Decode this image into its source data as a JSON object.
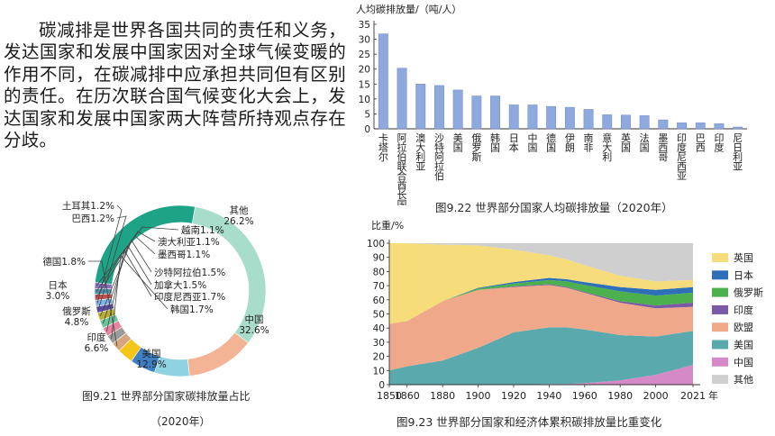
{
  "intro": {
    "paragraph": "碳减排是世界各国共同的责任和义务，发达国家和发展中国家因对全球气候变暖的作用不同，在碳减排中应承担共同但有区别的责任。在历次联合国气候变化大会上，发达国家和发展中国家两大阵营所持观点存在分歧。"
  },
  "captions": {
    "fig921_line1": "图9.21  世界部分国家碳排放量占比",
    "fig921_line2": "（2020年）",
    "fig922": "图9.22  世界部分国家人均碳排放量（2020年）",
    "fig923": "图9.23  世界部分国家和经济体累积碳排放量比重变化"
  },
  "chart_data": [
    {
      "id": "fig9_21",
      "type": "pie",
      "style": "donut",
      "slices": [
        {
          "label": "中国",
          "value": 32.6,
          "text": "中国\n32.6%",
          "color": "#a8dccb"
        },
        {
          "label": "美国",
          "value": 12.9,
          "text": "美国\n12.9%",
          "color": "#f3b496"
        },
        {
          "label": "印度",
          "value": 6.6,
          "text": "印度\n6.6%",
          "color": "#8fd3e3"
        },
        {
          "label": "俄罗斯",
          "value": 4.8,
          "text": "俄罗斯\n4.8%",
          "color": "#3f7fc4"
        },
        {
          "label": "日本",
          "value": 3.0,
          "text": "日本\n3.0%",
          "color": "#f5c518"
        },
        {
          "label": "德国",
          "value": 1.8,
          "text": "德国1.8%",
          "color": "#d7a57c"
        },
        {
          "label": "韩国",
          "value": 1.7,
          "text": "韩国1.7%",
          "color": "#9b9b9b"
        },
        {
          "label": "印度尼西亚",
          "value": 1.7,
          "text": "印度尼西亚1.7%",
          "color": "#e8849f"
        },
        {
          "label": "加拿大",
          "value": 1.5,
          "text": "加拿大1.5%",
          "color": "#6cc59a"
        },
        {
          "label": "沙特阿拉伯",
          "value": 1.5,
          "text": "沙特阿拉伯1.5%",
          "color": "#b7b035"
        },
        {
          "label": "巴西",
          "value": 1.2,
          "text": "巴西1.2%",
          "color": "#5b4aa0"
        },
        {
          "label": "土耳其",
          "value": 1.2,
          "text": "土耳其1.2%",
          "color": "#7fb3e6"
        },
        {
          "label": "墨西哥",
          "value": 1.1,
          "text": "墨西哥1.1%",
          "color": "#c0504d"
        },
        {
          "label": "澳大利亚",
          "value": 1.1,
          "text": "澳大利亚1.1%",
          "color": "#4a90a8"
        },
        {
          "label": "越南",
          "value": 1.1,
          "text": "越南1.1%",
          "color": "#8e6fbf"
        },
        {
          "label": "其他",
          "value": 26.2,
          "text": "其他\n26.2%",
          "color": "#1fa386"
        }
      ]
    },
    {
      "id": "fig9_22",
      "type": "bar",
      "ylabel": "人均碳排放量/（吨/人）",
      "ylim": [
        0,
        35
      ],
      "yticks": [
        0,
        5,
        10,
        15,
        20,
        25,
        30,
        35
      ],
      "bar_color": "#8ea9de",
      "categories": [
        "卡塔尔",
        "阿拉伯联合酋长国",
        "澳大利亚",
        "沙特阿拉伯",
        "美国",
        "俄罗斯",
        "韩国",
        "日本",
        "中国",
        "德国",
        "伊朗",
        "南非",
        "意大利",
        "英国",
        "法国",
        "墨西哥",
        "印度尼西亚",
        "巴西",
        "印度",
        "尼日利亚"
      ],
      "values": [
        31.8,
        20.3,
        15.0,
        14.5,
        13.0,
        11.0,
        11.0,
        8.0,
        8.0,
        7.5,
        7.2,
        6.5,
        4.7,
        4.6,
        4.4,
        3.0,
        2.0,
        2.0,
        1.7,
        0.6
      ]
    },
    {
      "id": "fig9_23",
      "type": "area",
      "stacked": true,
      "ylabel": "比重/%",
      "xlim": [
        1850,
        2021
      ],
      "ylim": [
        0,
        100
      ],
      "xticks": [
        1850,
        1860,
        1880,
        1900,
        1920,
        1940,
        1960,
        1980,
        2000,
        2021
      ],
      "xtick_suffix": "年",
      "yticks": [
        0,
        10,
        20,
        30,
        40,
        50,
        60,
        70,
        80,
        90,
        100
      ],
      "x": [
        1850,
        1860,
        1880,
        1900,
        1920,
        1940,
        1950,
        1960,
        1980,
        2000,
        2021
      ],
      "series": [
        {
          "name": "中国",
          "color": "#d58ac7",
          "values": [
            0,
            0,
            0,
            0,
            0,
            0.5,
            0.5,
            1,
            3,
            7,
            14
          ]
        },
        {
          "name": "美国",
          "color": "#5aa9ad",
          "values": [
            10,
            13,
            17,
            26,
            37,
            40,
            40,
            38,
            32,
            27,
            24
          ]
        },
        {
          "name": "欧盟",
          "color": "#efa98a",
          "values": [
            33,
            32,
            42,
            41,
            32,
            30,
            28,
            26,
            23,
            20,
            17
          ]
        },
        {
          "name": "印度",
          "color": "#7a5aa6",
          "values": [
            0,
            0,
            0,
            0,
            0.5,
            0.5,
            0.5,
            0.5,
            1,
            2,
            3
          ]
        },
        {
          "name": "俄罗斯",
          "color": "#4cb04c",
          "values": [
            0,
            0,
            0,
            1,
            2,
            3,
            4,
            5,
            7,
            7,
            7
          ]
        },
        {
          "name": "日本",
          "color": "#2f6fb8",
          "values": [
            0,
            0,
            0,
            0.5,
            1,
            1.5,
            1.5,
            2,
            3,
            4,
            4
          ]
        },
        {
          "name": "英国",
          "color": "#f6dc7a",
          "values": [
            57,
            55,
            40,
            30,
            23,
            16,
            14,
            12,
            8,
            6,
            5
          ]
        },
        {
          "name": "其他",
          "color": "#cfcfcf",
          "values": [
            0,
            0,
            1,
            1.5,
            4.5,
            8.5,
            11.5,
            15.5,
            23,
            27,
            26
          ]
        }
      ],
      "legend_order": [
        "英国",
        "日本",
        "俄罗斯",
        "印度",
        "欧盟",
        "美国",
        "中国",
        "其他"
      ],
      "legend_position": "right"
    }
  ]
}
